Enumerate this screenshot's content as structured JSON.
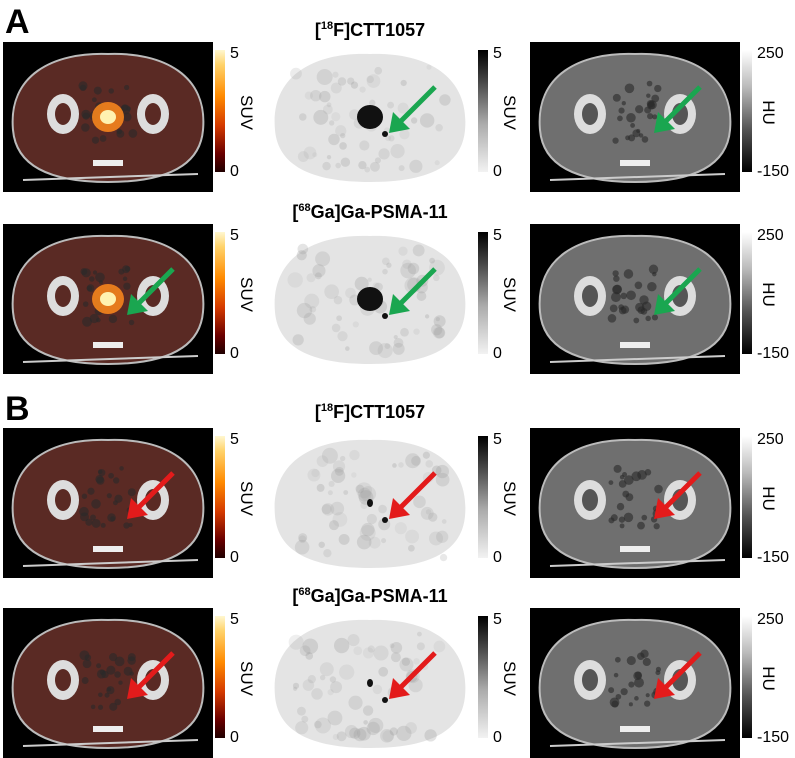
{
  "panels": [
    {
      "letter": "A",
      "rows": [
        {
          "tracer_prefix": "[",
          "tracer_sup": "18",
          "tracer_main": "F]CTT1057",
          "arrow_color": "#1aa650"
        },
        {
          "tracer_prefix": "[",
          "tracer_sup": "68",
          "tracer_main": "Ga]Ga-PSMA-11",
          "arrow_color": "#1aa650"
        }
      ]
    },
    {
      "letter": "B",
      "rows": [
        {
          "tracer_prefix": "[",
          "tracer_sup": "18",
          "tracer_main": "F]CTT1057",
          "arrow_color": "#e31b1b"
        },
        {
          "tracer_prefix": "[",
          "tracer_sup": "68",
          "tracer_main": "Ga]Ga-PSMA-11",
          "arrow_color": "#e31b1b"
        }
      ]
    }
  ],
  "colorbars": {
    "suv": {
      "max": "5",
      "min": "0",
      "unit": "SUV"
    },
    "hu": {
      "max": "250",
      "min": "-150",
      "unit": "HU"
    }
  }
}
